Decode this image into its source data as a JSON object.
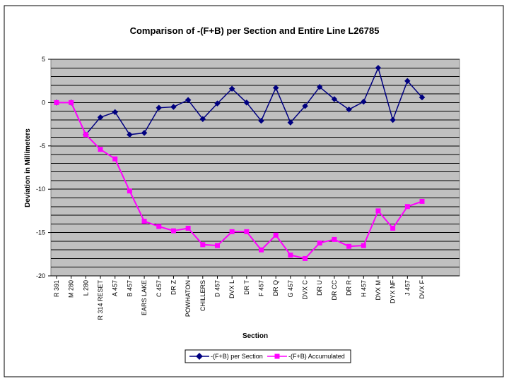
{
  "chart_data": {
    "type": "line",
    "title": "Comparison of -(F+B) per Section and Entire Line L26785",
    "xlabel": "Section",
    "ylabel": "Deviation in Millimeters",
    "ylim": [
      -20,
      5
    ],
    "yticks": [
      5,
      0,
      -5,
      -10,
      -15,
      -20
    ],
    "grid": true,
    "legend_position": "bottom-right",
    "categories": [
      "R 391",
      "M 280",
      "L 280",
      "R 314 RESET",
      "A 457",
      "B 457",
      "EARS LAKE",
      "C 457",
      "DR Z",
      "POWHATON",
      "CHILLERS",
      "D 457",
      "DVX L",
      "DR T",
      "F 457",
      "DR Q",
      "G 457",
      "DVX C",
      "DR U",
      "DR CC",
      "DR R",
      "H 457",
      "DVX M",
      "DYX NF",
      "J 457",
      "DVX F"
    ],
    "series": [
      {
        "name": "-(F+B) per Section",
        "color": "#000080",
        "marker": "diamond",
        "values": [
          0,
          0,
          -3.7,
          -1.7,
          -1.1,
          -3.7,
          -3.5,
          -0.6,
          -0.5,
          0.3,
          -1.9,
          -0.1,
          1.6,
          0,
          -2.1,
          1.7,
          -2.3,
          -0.4,
          1.8,
          0.4,
          -0.8,
          0.1,
          4,
          -2,
          2.5,
          0.6
        ]
      },
      {
        "name": "-(F+B) Accumulated",
        "color": "#FF00FF",
        "marker": "square",
        "values": [
          0,
          0,
          -3.7,
          -5.4,
          -6.5,
          -10.2,
          -13.7,
          -14.3,
          -14.8,
          -14.5,
          -16.4,
          -16.5,
          -14.9,
          -14.9,
          -17,
          -15.3,
          -17.6,
          -18,
          -16.2,
          -15.8,
          -16.6,
          -16.5,
          -12.5,
          -14.5,
          -12,
          -11.4
        ]
      }
    ]
  }
}
